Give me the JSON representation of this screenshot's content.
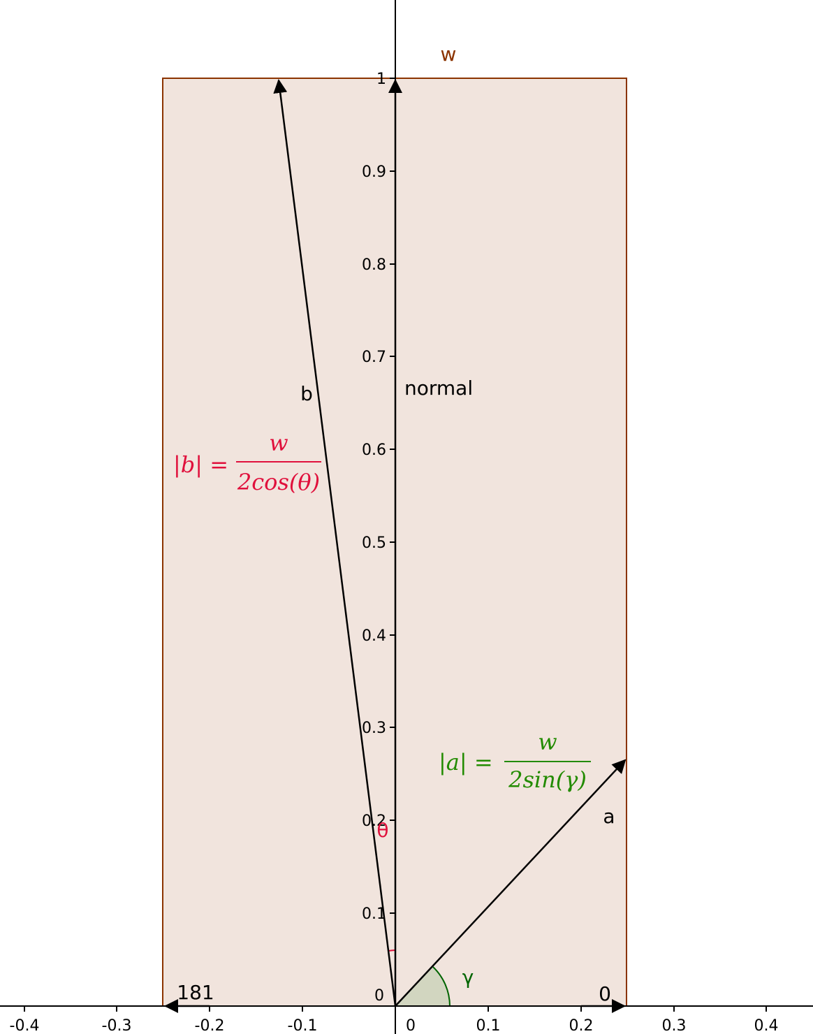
{
  "axes": {
    "x_ticks": [
      "-0.4",
      "-0.3",
      "-0.2",
      "-0.1",
      "0",
      "0.1",
      "0.2",
      "0.3",
      "0.4"
    ],
    "y_ticks": [
      "0.1",
      "0.2",
      "0.3",
      "0.4",
      "0.5",
      "0.6",
      "0.7",
      "0.8",
      "0.9",
      "1"
    ],
    "origin_label": "0"
  },
  "labels": {
    "w": "w",
    "normal": "normal",
    "b": "b",
    "a": "a",
    "theta": "θ",
    "gamma": "γ",
    "left_bottom": "181",
    "right_bottom": "0"
  },
  "formulas": {
    "b_lhs": "|b| =",
    "b_num": "w",
    "b_den": "2cos(θ)",
    "a_lhs": "|a| =",
    "a_num": "w",
    "a_den": "2sin(γ)"
  },
  "colors": {
    "rect_fill": "#f1e4dd",
    "rect_stroke": "#8b3300",
    "red": "#e0103c",
    "green": "#228b00",
    "gamma_green": "#006400",
    "angle_fill": "#d2d6c0"
  }
}
